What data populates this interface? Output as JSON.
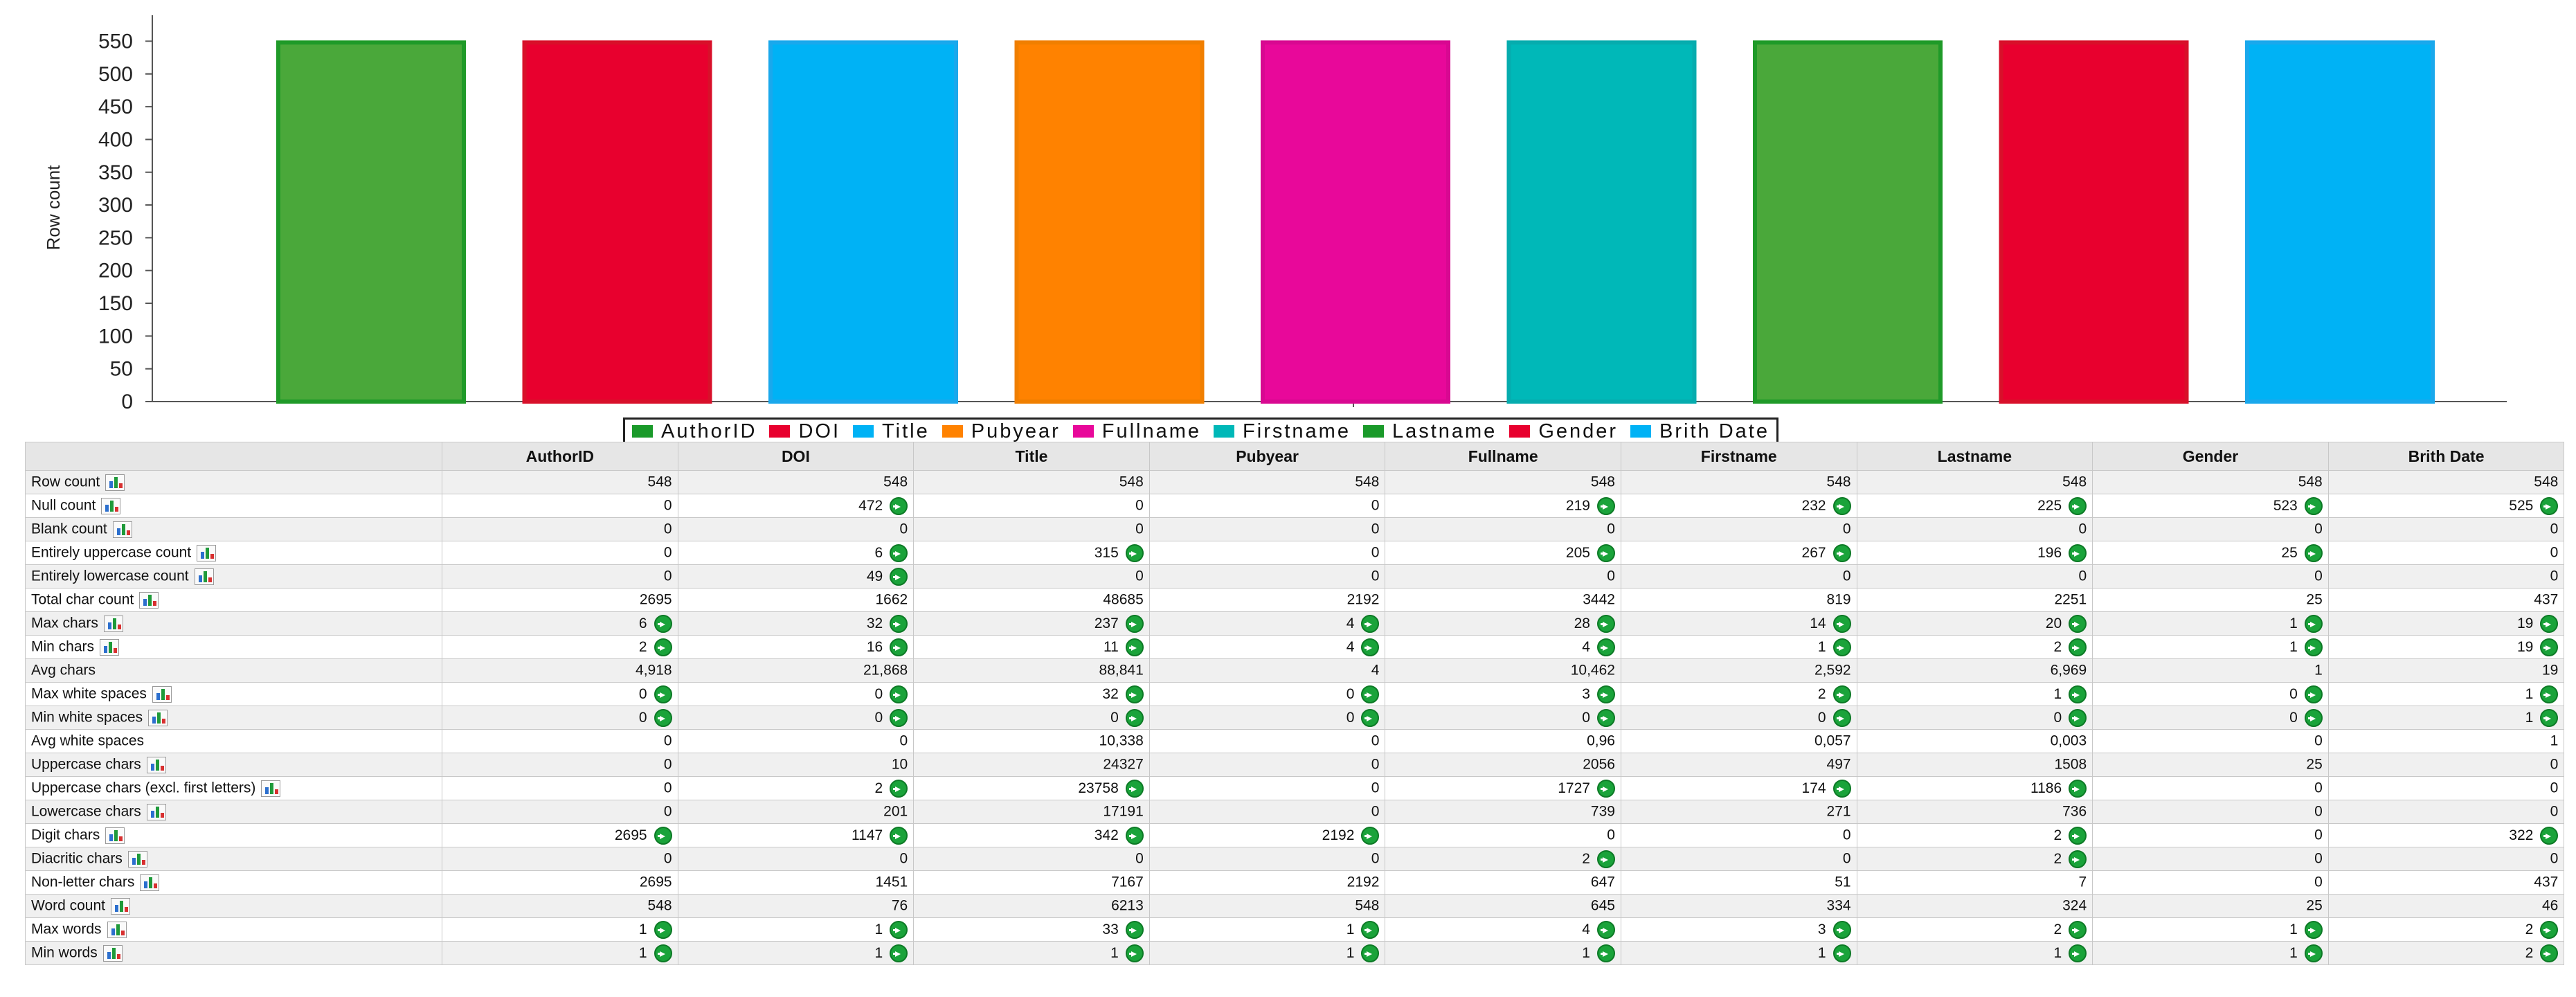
{
  "chart_data": {
    "type": "bar",
    "ylabel": "Row count",
    "yticks": [
      0,
      50,
      100,
      150,
      200,
      250,
      300,
      350,
      400,
      450,
      500,
      550
    ],
    "ylim": [
      0,
      560
    ],
    "categories": [
      "AuthorID",
      "DOI",
      "Title",
      "Pubyear",
      "Fullname",
      "Firstname",
      "Lastname",
      "Gender",
      "Brith Date"
    ],
    "values": [
      548,
      548,
      548,
      548,
      548,
      548,
      548,
      548,
      548
    ],
    "colors": [
      "#4aa83a",
      "#e8002e",
      "#00b2f5",
      "#ff8200",
      "#e8089a",
      "#00b8b8",
      "#4aa83a",
      "#e8002e",
      "#00b2f5"
    ],
    "grid": false,
    "legend": "bottom"
  },
  "legend": [
    {
      "label": "AuthorID",
      "color": "#1a9a2a"
    },
    {
      "label": "DOI",
      "color": "#e8002e"
    },
    {
      "label": "Title",
      "color": "#00b2f5"
    },
    {
      "label": "Pubyear",
      "color": "#ff8200"
    },
    {
      "label": "Fullname",
      "color": "#e8089a"
    },
    {
      "label": "Firstname",
      "color": "#00b8b8"
    },
    {
      "label": "Lastname",
      "color": "#1a9a2a"
    },
    {
      "label": "Gender",
      "color": "#e8002e"
    },
    {
      "label": "Brith Date",
      "color": "#00b2f5"
    }
  ],
  "table": {
    "columns": [
      "AuthorID",
      "DOI",
      "Title",
      "Pubyear",
      "Fullname",
      "Firstname",
      "Lastname",
      "Gender",
      "Brith Date"
    ],
    "rows": [
      {
        "label": "Row count",
        "chart": true,
        "cells": [
          [
            "548",
            false
          ],
          [
            "548",
            false
          ],
          [
            "548",
            false
          ],
          [
            "548",
            false
          ],
          [
            "548",
            false
          ],
          [
            "548",
            false
          ],
          [
            "548",
            false
          ],
          [
            "548",
            false
          ],
          [
            "548",
            false
          ]
        ]
      },
      {
        "label": "Null count",
        "chart": true,
        "cells": [
          [
            "0",
            false
          ],
          [
            "472",
            true
          ],
          [
            "0",
            false
          ],
          [
            "0",
            false
          ],
          [
            "219",
            true
          ],
          [
            "232",
            true
          ],
          [
            "225",
            true
          ],
          [
            "523",
            true
          ],
          [
            "525",
            true
          ]
        ]
      },
      {
        "label": "Blank count",
        "chart": true,
        "cells": [
          [
            "0",
            false
          ],
          [
            "0",
            false
          ],
          [
            "0",
            false
          ],
          [
            "0",
            false
          ],
          [
            "0",
            false
          ],
          [
            "0",
            false
          ],
          [
            "0",
            false
          ],
          [
            "0",
            false
          ],
          [
            "0",
            false
          ]
        ]
      },
      {
        "label": "Entirely uppercase count",
        "chart": true,
        "cells": [
          [
            "0",
            false
          ],
          [
            "6",
            true
          ],
          [
            "315",
            true
          ],
          [
            "0",
            false
          ],
          [
            "205",
            true
          ],
          [
            "267",
            true
          ],
          [
            "196",
            true
          ],
          [
            "25",
            true
          ],
          [
            "0",
            false
          ]
        ]
      },
      {
        "label": "Entirely lowercase count",
        "chart": true,
        "cells": [
          [
            "0",
            false
          ],
          [
            "49",
            true
          ],
          [
            "0",
            false
          ],
          [
            "0",
            false
          ],
          [
            "0",
            false
          ],
          [
            "0",
            false
          ],
          [
            "0",
            false
          ],
          [
            "0",
            false
          ],
          [
            "0",
            false
          ]
        ]
      },
      {
        "label": "Total char count",
        "chart": true,
        "cells": [
          [
            "2695",
            false
          ],
          [
            "1662",
            false
          ],
          [
            "48685",
            false
          ],
          [
            "2192",
            false
          ],
          [
            "3442",
            false
          ],
          [
            "819",
            false
          ],
          [
            "2251",
            false
          ],
          [
            "25",
            false
          ],
          [
            "437",
            false
          ]
        ]
      },
      {
        "label": "Max chars",
        "chart": true,
        "cells": [
          [
            "6",
            true
          ],
          [
            "32",
            true
          ],
          [
            "237",
            true
          ],
          [
            "4",
            true
          ],
          [
            "28",
            true
          ],
          [
            "14",
            true
          ],
          [
            "20",
            true
          ],
          [
            "1",
            true
          ],
          [
            "19",
            true
          ]
        ]
      },
      {
        "label": "Min chars",
        "chart": true,
        "cells": [
          [
            "2",
            true
          ],
          [
            "16",
            true
          ],
          [
            "11",
            true
          ],
          [
            "4",
            true
          ],
          [
            "4",
            true
          ],
          [
            "1",
            true
          ],
          [
            "2",
            true
          ],
          [
            "1",
            true
          ],
          [
            "19",
            true
          ]
        ]
      },
      {
        "label": "Avg chars",
        "chart": false,
        "cells": [
          [
            "4,918",
            false
          ],
          [
            "21,868",
            false
          ],
          [
            "88,841",
            false
          ],
          [
            "4",
            false
          ],
          [
            "10,462",
            false
          ],
          [
            "2,592",
            false
          ],
          [
            "6,969",
            false
          ],
          [
            "1",
            false
          ],
          [
            "19",
            false
          ]
        ]
      },
      {
        "label": "Max white spaces",
        "chart": true,
        "cells": [
          [
            "0",
            true
          ],
          [
            "0",
            true
          ],
          [
            "32",
            true
          ],
          [
            "0",
            true
          ],
          [
            "3",
            true
          ],
          [
            "2",
            true
          ],
          [
            "1",
            true
          ],
          [
            "0",
            true
          ],
          [
            "1",
            true
          ]
        ]
      },
      {
        "label": "Min white spaces",
        "chart": true,
        "cells": [
          [
            "0",
            true
          ],
          [
            "0",
            true
          ],
          [
            "0",
            true
          ],
          [
            "0",
            true
          ],
          [
            "0",
            true
          ],
          [
            "0",
            true
          ],
          [
            "0",
            true
          ],
          [
            "0",
            true
          ],
          [
            "1",
            true
          ]
        ]
      },
      {
        "label": "Avg white spaces",
        "chart": false,
        "cells": [
          [
            "0",
            false
          ],
          [
            "0",
            false
          ],
          [
            "10,338",
            false
          ],
          [
            "0",
            false
          ],
          [
            "0,96",
            false
          ],
          [
            "0,057",
            false
          ],
          [
            "0,003",
            false
          ],
          [
            "0",
            false
          ],
          [
            "1",
            false
          ]
        ]
      },
      {
        "label": "Uppercase chars",
        "chart": true,
        "cells": [
          [
            "0",
            false
          ],
          [
            "10",
            false
          ],
          [
            "24327",
            false
          ],
          [
            "0",
            false
          ],
          [
            "2056",
            false
          ],
          [
            "497",
            false
          ],
          [
            "1508",
            false
          ],
          [
            "25",
            false
          ],
          [
            "0",
            false
          ]
        ]
      },
      {
        "label": "Uppercase chars (excl. first letters)",
        "chart": true,
        "cells": [
          [
            "0",
            false
          ],
          [
            "2",
            true
          ],
          [
            "23758",
            true
          ],
          [
            "0",
            false
          ],
          [
            "1727",
            true
          ],
          [
            "174",
            true
          ],
          [
            "1186",
            true
          ],
          [
            "0",
            false
          ],
          [
            "0",
            false
          ]
        ]
      },
      {
        "label": "Lowercase chars",
        "chart": true,
        "cells": [
          [
            "0",
            false
          ],
          [
            "201",
            false
          ],
          [
            "17191",
            false
          ],
          [
            "0",
            false
          ],
          [
            "739",
            false
          ],
          [
            "271",
            false
          ],
          [
            "736",
            false
          ],
          [
            "0",
            false
          ],
          [
            "0",
            false
          ]
        ]
      },
      {
        "label": "Digit chars",
        "chart": true,
        "cells": [
          [
            "2695",
            true
          ],
          [
            "1147",
            true
          ],
          [
            "342",
            true
          ],
          [
            "2192",
            true
          ],
          [
            "0",
            false
          ],
          [
            "0",
            false
          ],
          [
            "2",
            true
          ],
          [
            "0",
            false
          ],
          [
            "322",
            true
          ]
        ]
      },
      {
        "label": "Diacritic chars",
        "chart": true,
        "cells": [
          [
            "0",
            false
          ],
          [
            "0",
            false
          ],
          [
            "0",
            false
          ],
          [
            "0",
            false
          ],
          [
            "2",
            true
          ],
          [
            "0",
            false
          ],
          [
            "2",
            true
          ],
          [
            "0",
            false
          ],
          [
            "0",
            false
          ]
        ]
      },
      {
        "label": "Non-letter chars",
        "chart": true,
        "cells": [
          [
            "2695",
            false
          ],
          [
            "1451",
            false
          ],
          [
            "7167",
            false
          ],
          [
            "2192",
            false
          ],
          [
            "647",
            false
          ],
          [
            "51",
            false
          ],
          [
            "7",
            false
          ],
          [
            "0",
            false
          ],
          [
            "437",
            false
          ]
        ]
      },
      {
        "label": "Word count",
        "chart": true,
        "cells": [
          [
            "548",
            false
          ],
          [
            "76",
            false
          ],
          [
            "6213",
            false
          ],
          [
            "548",
            false
          ],
          [
            "645",
            false
          ],
          [
            "334",
            false
          ],
          [
            "324",
            false
          ],
          [
            "25",
            false
          ],
          [
            "46",
            false
          ]
        ]
      },
      {
        "label": "Max words",
        "chart": true,
        "cells": [
          [
            "1",
            true
          ],
          [
            "1",
            true
          ],
          [
            "33",
            true
          ],
          [
            "1",
            true
          ],
          [
            "4",
            true
          ],
          [
            "3",
            true
          ],
          [
            "2",
            true
          ],
          [
            "1",
            true
          ],
          [
            "2",
            true
          ]
        ]
      },
      {
        "label": "Min words",
        "chart": true,
        "cells": [
          [
            "1",
            true
          ],
          [
            "1",
            true
          ],
          [
            "1",
            true
          ],
          [
            "1",
            true
          ],
          [
            "1",
            true
          ],
          [
            "1",
            true
          ],
          [
            "1",
            true
          ],
          [
            "1",
            true
          ],
          [
            "2",
            true
          ]
        ]
      }
    ]
  }
}
